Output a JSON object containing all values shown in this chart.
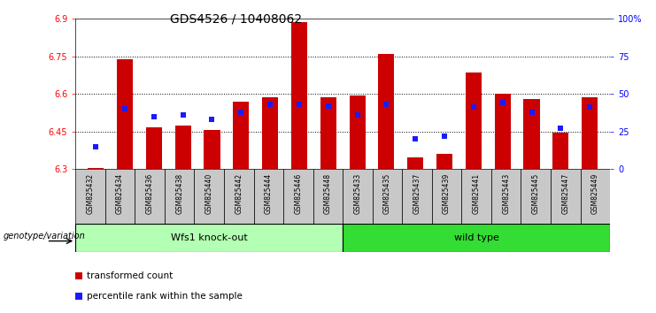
{
  "title": "GDS4526 / 10408062",
  "samples": [
    "GSM825432",
    "GSM825434",
    "GSM825436",
    "GSM825438",
    "GSM825440",
    "GSM825442",
    "GSM825444",
    "GSM825446",
    "GSM825448",
    "GSM825433",
    "GSM825435",
    "GSM825437",
    "GSM825439",
    "GSM825441",
    "GSM825443",
    "GSM825445",
    "GSM825447",
    "GSM825449"
  ],
  "red_values": [
    6.305,
    6.74,
    6.465,
    6.475,
    6.455,
    6.57,
    6.585,
    6.885,
    6.585,
    6.595,
    6.76,
    6.345,
    6.36,
    6.685,
    6.6,
    6.58,
    6.445,
    6.585
  ],
  "blue_percentiles": [
    15,
    40,
    35,
    36,
    33,
    38,
    43,
    43,
    42,
    36,
    43,
    20,
    22,
    41,
    44,
    38,
    27,
    41
  ],
  "group1_label": "Wfs1 knock-out",
  "group2_label": "wild type",
  "group_label_prefix": "genotype/variation",
  "group1_count": 9,
  "group2_count": 9,
  "ymin": 6.3,
  "ymax": 6.9,
  "yticks": [
    6.3,
    6.45,
    6.6,
    6.75,
    6.9
  ],
  "right_yticks": [
    0,
    25,
    50,
    75,
    100
  ],
  "right_ytick_labels": [
    "0",
    "25",
    "50",
    "75",
    "100%"
  ],
  "bar_color": "#cc0000",
  "blue_color": "#1a1aff",
  "group1_bg": "#b3ffb3",
  "group2_bg": "#33dd33",
  "sample_box_bg": "#c8c8c8",
  "bar_width": 0.55,
  "legend_red": "transformed count",
  "legend_blue": "percentile rank within the sample",
  "title_fontsize": 10,
  "tick_fontsize": 7,
  "label_fontsize": 8
}
